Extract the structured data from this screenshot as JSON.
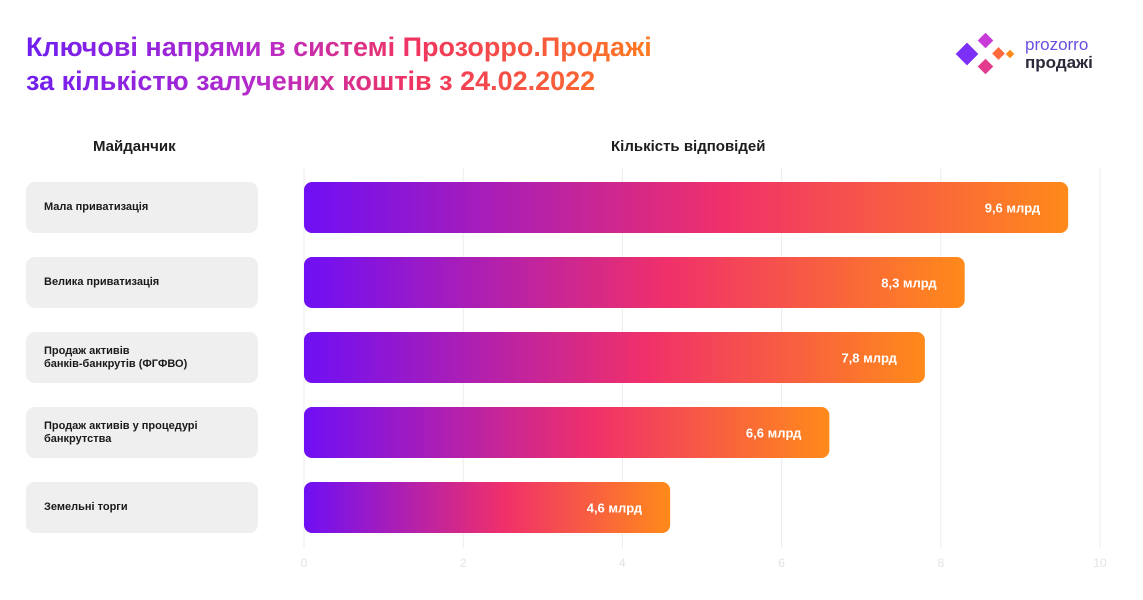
{
  "title": {
    "line1": "Ключові напрями в системі Прозорро.Продажі",
    "line2": "за кількістю залучених коштів з 24.02.2022"
  },
  "logo": {
    "line1": "prozorro",
    "line2": "продажі"
  },
  "headers": {
    "left": "Майданчик",
    "right": "Кількість відповідей"
  },
  "colors": {
    "gradient_start": "#6f0ff5",
    "gradient_mid": "#f0306a",
    "gradient_end": "#ff8a1a",
    "label_bg": "#efefef"
  },
  "chart_data": {
    "type": "bar",
    "orientation": "horizontal",
    "categories": [
      "Мала приватизація",
      "Велика приватизація",
      "Продаж активів\nбанків-банкрутів (ФГФВО)",
      "Продаж активів у процедурі\nбанкрутства",
      "Земельні торги"
    ],
    "values": [
      9.6,
      8.3,
      7.8,
      6.6,
      4.6
    ],
    "value_labels": [
      "9,6 млрд",
      "8,3 млрд",
      "7,8 млрд",
      "6,6 млрд",
      "4,6 млрд"
    ],
    "xlim": [
      0,
      10
    ],
    "xticks": [
      0,
      2,
      4,
      6,
      8,
      10
    ],
    "grid": true
  }
}
